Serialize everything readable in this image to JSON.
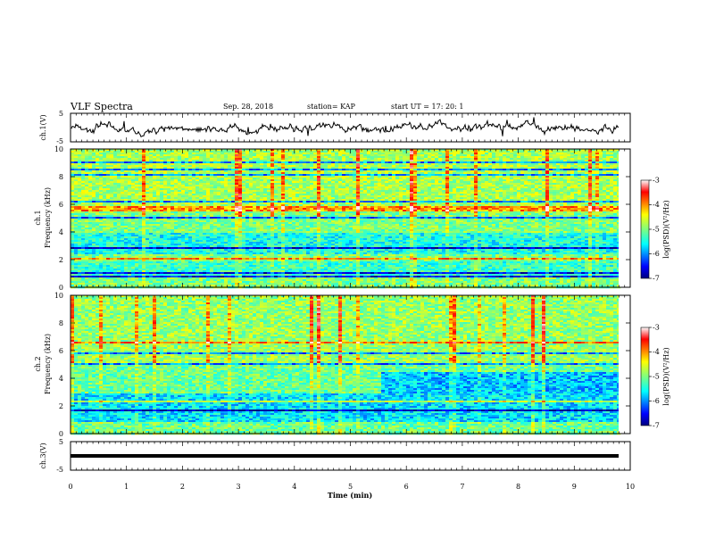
{
  "header": {
    "title": "VLF Spectra",
    "date": "Sep. 28, 2018",
    "station": "station= KAP",
    "start": "start  UT  =   17: 20: 1"
  },
  "chart_data": {
    "type": "heatmap",
    "x_label": "Time  (min)",
    "x_range": [
      0,
      10
    ],
    "x_ticks": [
      "0",
      "1",
      "2",
      "3",
      "4",
      "5",
      "6",
      "7",
      "8",
      "9",
      "10"
    ],
    "panels": [
      {
        "id": "ch1-waveform",
        "type": "line",
        "ylabel": "ch.1(V)",
        "ylim": [
          -5,
          5
        ],
        "y_ticks": [
          "5",
          "-5"
        ]
      },
      {
        "id": "ch1-spectrogram",
        "type": "heatmap",
        "ylabel_top": "ch.1",
        "ylabel": "Frequency  (kHz)",
        "ylim": [
          0,
          10
        ],
        "y_ticks": [
          "0",
          "2",
          "4",
          "6",
          "8",
          "10"
        ],
        "colorbar": {
          "label": "log(PSD)(V²/Hz)",
          "range": [
            -7,
            -3
          ],
          "ticks": [
            "-3",
            "-4",
            "-5",
            "-6",
            "-7"
          ]
        }
      },
      {
        "id": "ch2-spectrogram",
        "type": "heatmap",
        "ylabel_top": "ch.2",
        "ylabel": "Frequency  (kHz)",
        "ylim": [
          0,
          10
        ],
        "y_ticks": [
          "0",
          "2",
          "4",
          "6",
          "8",
          "10"
        ],
        "colorbar": {
          "label": "log(PSD)(V²/Hz)",
          "range": [
            -7,
            -3
          ],
          "ticks": [
            "-3",
            "-4",
            "-5",
            "-6",
            "-7"
          ]
        }
      },
      {
        "id": "ch3-waveform",
        "type": "line",
        "ylabel": "ch.3(V)",
        "ylim": [
          -5,
          5
        ],
        "y_ticks": [
          "5",
          "-5"
        ],
        "level": 0
      }
    ]
  }
}
